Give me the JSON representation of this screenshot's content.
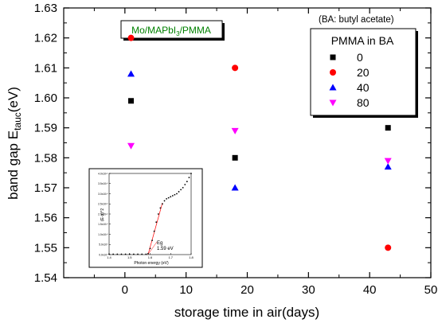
{
  "chart_data": {
    "type": "scatter",
    "xlabel": "storage time in air(days)",
    "ylabel": "band gap E_tauc(eV)",
    "xlim": [
      -10,
      50
    ],
    "ylim": [
      1.54,
      1.63
    ],
    "xticks": [
      "0",
      "10",
      "20",
      "30",
      "40",
      "50"
    ],
    "yticks": [
      "1.54",
      "1.55",
      "1.56",
      "1.57",
      "1.58",
      "1.59",
      "1.60",
      "1.61",
      "1.62",
      "1.63"
    ],
    "sample_label": "Mo/MAPbI3/PMMA",
    "note": "(BA: butyl acetate)",
    "legend": {
      "title": "PMMA in BA",
      "position": "top-right"
    },
    "series": [
      {
        "name": "0",
        "marker": "square",
        "color": "#000000",
        "x": [
          1,
          18,
          43
        ],
        "y": [
          1.599,
          1.58,
          1.59
        ]
      },
      {
        "name": "20",
        "marker": "circle",
        "color": "#ff0000",
        "x": [
          1,
          18,
          43
        ],
        "y": [
          1.62,
          1.61,
          1.55
        ]
      },
      {
        "name": "40",
        "marker": "triangle-up",
        "color": "#0000ff",
        "x": [
          1,
          18,
          43
        ],
        "y": [
          1.608,
          1.57,
          1.577
        ]
      },
      {
        "name": "80",
        "marker": "triangle-down",
        "color": "#ff00ff",
        "x": [
          1,
          18,
          43
        ],
        "y": [
          1.584,
          1.589,
          1.579
        ]
      }
    ],
    "inset": {
      "type": "line",
      "xlabel": "Photon energy (eV)",
      "ylabel": "(E·α)^2",
      "xlim": [
        1.4,
        1.8
      ],
      "xticks": [
        "1.4",
        "1.5",
        "1.6",
        "1.7",
        "1.8"
      ],
      "yticks": [
        "0.0x10⁹",
        "5.0x10⁹",
        "1.0x10¹⁰",
        "1.5x10¹⁰",
        "2.0x10¹⁰",
        "2.5x10¹⁰",
        "3.0x10¹⁰",
        "3.5x10¹⁰",
        "4.0x10¹⁰"
      ],
      "ylim": [
        0,
        40000000000.0
      ],
      "annotation_label": "Eg",
      "annotation_value": "1.59 eV",
      "x": [
        1.4,
        1.42,
        1.44,
        1.46,
        1.48,
        1.5,
        1.52,
        1.54,
        1.56,
        1.58,
        1.59,
        1.6,
        1.61,
        1.62,
        1.63,
        1.64,
        1.65,
        1.66,
        1.67,
        1.68,
        1.69,
        1.7,
        1.71,
        1.72,
        1.73,
        1.74,
        1.75,
        1.76,
        1.77,
        1.78,
        1.79,
        1.8
      ],
      "y": [
        200000000.0,
        200000000.0,
        200000000.0,
        200000000.0,
        200000000.0,
        200000000.0,
        200000000.0,
        200000000.0,
        200000000.0,
        200000000.0,
        500000000.0,
        3000000000.0,
        7000000000.0,
        11500000000.0,
        16000000000.0,
        20000000000.0,
        23000000000.0,
        25000000000.0,
        26500000000.0,
        27500000000.0,
        28000000000.0,
        28500000000.0,
        29000000000.0,
        29500000000.0,
        30000000000.0,
        31000000000.0,
        32000000000.0,
        33000000000.0,
        34500000000.0,
        36000000000.0,
        38000000000.0,
        40000000000.0
      ]
    }
  }
}
